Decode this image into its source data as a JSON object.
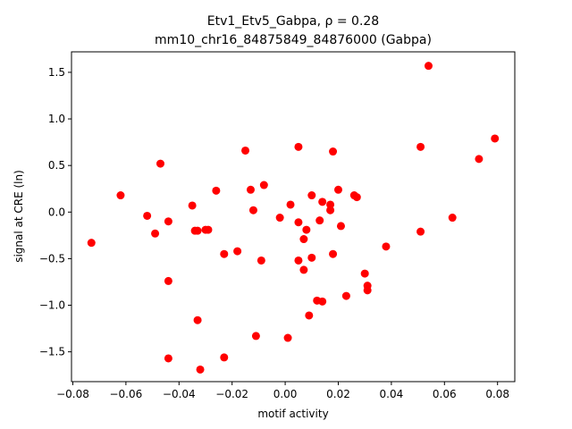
{
  "chart_data": {
    "type": "scatter",
    "title": "Etv1_Etv5_Gabpa, ρ = 0.28",
    "subtitle": "mm10_chr16_84875849_84876000 (Gabpa)",
    "xlabel": "motif activity",
    "ylabel": "signal at CRE (ln)",
    "xlim": [
      -0.0805,
      0.0865
    ],
    "ylim": [
      -1.82,
      1.72
    ],
    "x_ticks": [
      -0.08,
      -0.06,
      -0.04,
      -0.02,
      0.0,
      0.02,
      0.04,
      0.06,
      0.08
    ],
    "x_tick_labels": [
      "−0.08",
      "−0.06",
      "−0.04",
      "−0.02",
      "0.00",
      "0.02",
      "0.04",
      "0.06",
      "0.08"
    ],
    "y_ticks": [
      -1.5,
      -1.0,
      -0.5,
      0.0,
      0.5,
      1.0,
      1.5
    ],
    "y_tick_labels": [
      "−1.5",
      "−1.0",
      "−0.5",
      "0.0",
      "0.5",
      "1.0",
      "1.5"
    ],
    "marker_color": "#ff0000",
    "grid": false,
    "points": [
      {
        "x": -0.073,
        "y": -0.33
      },
      {
        "x": -0.062,
        "y": 0.18
      },
      {
        "x": -0.052,
        "y": -0.04
      },
      {
        "x": -0.049,
        "y": -0.23
      },
      {
        "x": -0.047,
        "y": 0.52
      },
      {
        "x": -0.044,
        "y": -0.1
      },
      {
        "x": -0.044,
        "y": -0.74
      },
      {
        "x": -0.044,
        "y": -1.57
      },
      {
        "x": -0.035,
        "y": 0.07
      },
      {
        "x": -0.034,
        "y": -0.2
      },
      {
        "x": -0.033,
        "y": -0.2
      },
      {
        "x": -0.033,
        "y": -1.16
      },
      {
        "x": -0.032,
        "y": -1.69
      },
      {
        "x": -0.03,
        "y": -0.19
      },
      {
        "x": -0.029,
        "y": -0.19
      },
      {
        "x": -0.026,
        "y": 0.23
      },
      {
        "x": -0.023,
        "y": -0.45
      },
      {
        "x": -0.023,
        "y": -1.56
      },
      {
        "x": -0.018,
        "y": -0.42
      },
      {
        "x": -0.015,
        "y": 0.66
      },
      {
        "x": -0.013,
        "y": 0.24
      },
      {
        "x": -0.012,
        "y": 0.02
      },
      {
        "x": -0.011,
        "y": -1.33
      },
      {
        "x": -0.009,
        "y": -0.52
      },
      {
        "x": -0.008,
        "y": 0.29
      },
      {
        "x": -0.002,
        "y": -0.06
      },
      {
        "x": 0.001,
        "y": -1.35
      },
      {
        "x": 0.002,
        "y": 0.08
      },
      {
        "x": 0.005,
        "y": 0.7
      },
      {
        "x": 0.005,
        "y": -0.11
      },
      {
        "x": 0.005,
        "y": -0.52
      },
      {
        "x": 0.007,
        "y": -0.29
      },
      {
        "x": 0.007,
        "y": -0.62
      },
      {
        "x": 0.008,
        "y": -0.19
      },
      {
        "x": 0.009,
        "y": -1.11
      },
      {
        "x": 0.01,
        "y": 0.18
      },
      {
        "x": 0.01,
        "y": -0.49
      },
      {
        "x": 0.012,
        "y": -0.95
      },
      {
        "x": 0.013,
        "y": -0.09
      },
      {
        "x": 0.014,
        "y": 0.11
      },
      {
        "x": 0.014,
        "y": -0.96
      },
      {
        "x": 0.017,
        "y": 0.02
      },
      {
        "x": 0.017,
        "y": 0.08
      },
      {
        "x": 0.018,
        "y": 0.65
      },
      {
        "x": 0.018,
        "y": -0.45
      },
      {
        "x": 0.02,
        "y": 0.24
      },
      {
        "x": 0.021,
        "y": -0.15
      },
      {
        "x": 0.023,
        "y": -0.9
      },
      {
        "x": 0.026,
        "y": 0.18
      },
      {
        "x": 0.027,
        "y": 0.16
      },
      {
        "x": 0.03,
        "y": -0.66
      },
      {
        "x": 0.031,
        "y": -0.84
      },
      {
        "x": 0.031,
        "y": -0.79
      },
      {
        "x": 0.038,
        "y": -0.37
      },
      {
        "x": 0.051,
        "y": 0.7
      },
      {
        "x": 0.051,
        "y": -0.21
      },
      {
        "x": 0.054,
        "y": 1.57
      },
      {
        "x": 0.063,
        "y": -0.06
      },
      {
        "x": 0.073,
        "y": 0.57
      },
      {
        "x": 0.079,
        "y": 0.79
      }
    ]
  }
}
